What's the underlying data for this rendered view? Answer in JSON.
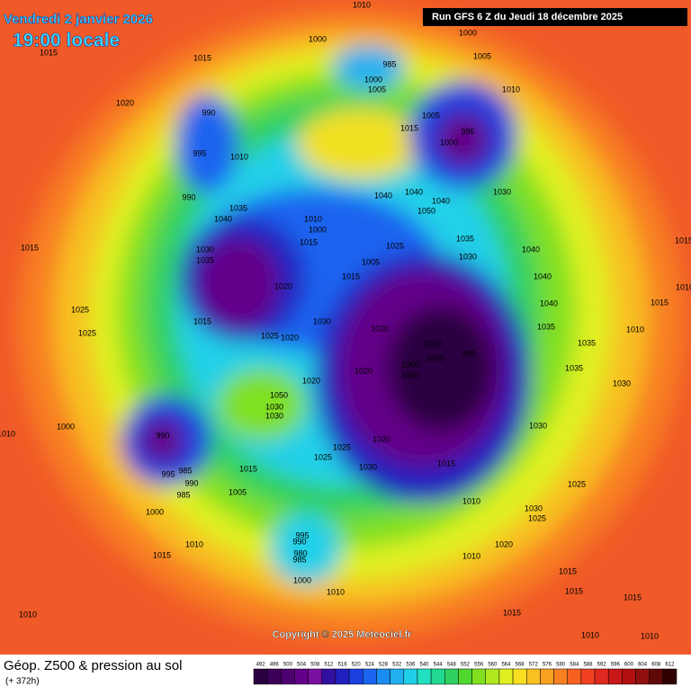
{
  "header": {
    "date": "Vendredi 2 janvier 2026",
    "time": "19:00 locale",
    "run": "Run GFS 6 Z du Jeudi 18 décembre 2025"
  },
  "copyright": "Copyright © 2025 Meteociel.fr",
  "footer": {
    "title": "Géop. Z500 & pression au sol",
    "lead": "(+ 372h)"
  },
  "legend": {
    "values": [
      492,
      496,
      500,
      504,
      508,
      512,
      516,
      520,
      524,
      528,
      532,
      536,
      540,
      544,
      548,
      552,
      556,
      560,
      564,
      568,
      572,
      576,
      580,
      584,
      588,
      592,
      596,
      600,
      604,
      608,
      612
    ],
    "colors": [
      "#2a0040",
      "#3d0058",
      "#4f0070",
      "#640088",
      "#7a10a0",
      "#3010a0",
      "#2020c0",
      "#1a40e0",
      "#1a64f0",
      "#1a8cf0",
      "#20b0f0",
      "#20d0e8",
      "#20e0c0",
      "#20d890",
      "#30d060",
      "#50d830",
      "#80e020",
      "#b0e820",
      "#e0f020",
      "#f8e020",
      "#f8c020",
      "#f8a020",
      "#f88020",
      "#f86020",
      "#f04020",
      "#e02820",
      "#c81818",
      "#b01010",
      "#901010",
      "#600808",
      "#300000"
    ]
  },
  "pressure_labels": [
    1010,
    1000,
    1000,
    1015,
    1015,
    985,
    1005,
    1000,
    1005,
    1010,
    1020,
    990,
    1005,
    1015,
    995,
    1000,
    995,
    1010,
    990,
    1035,
    1040,
    1040,
    1040,
    1040,
    1050,
    1030,
    1010,
    1000,
    1015,
    1025,
    1035,
    1030,
    1040,
    1015,
    1015,
    1030,
    1035,
    1005,
    1015,
    1020,
    1040,
    1010,
    1015,
    1025,
    1030,
    1040,
    1015,
    1035,
    1025,
    1020,
    1010,
    1025,
    1020,
    1010,
    995,
    1005,
    1035,
    1000,
    1000,
    1020,
    1035,
    1020,
    1050,
    1030,
    1030,
    1030,
    1030,
    1000,
    1010,
    990,
    1020,
    1025,
    1025,
    1015,
    1015,
    985,
    995,
    1030,
    990,
    1025,
    1005,
    985,
    1010,
    1030,
    1025,
    1000,
    995,
    990,
    980,
    985,
    1010,
    1020,
    1015,
    1010,
    1015,
    1000,
    1010,
    1015,
    1010,
    1015,
    1015,
    1010,
    1010
  ]
}
